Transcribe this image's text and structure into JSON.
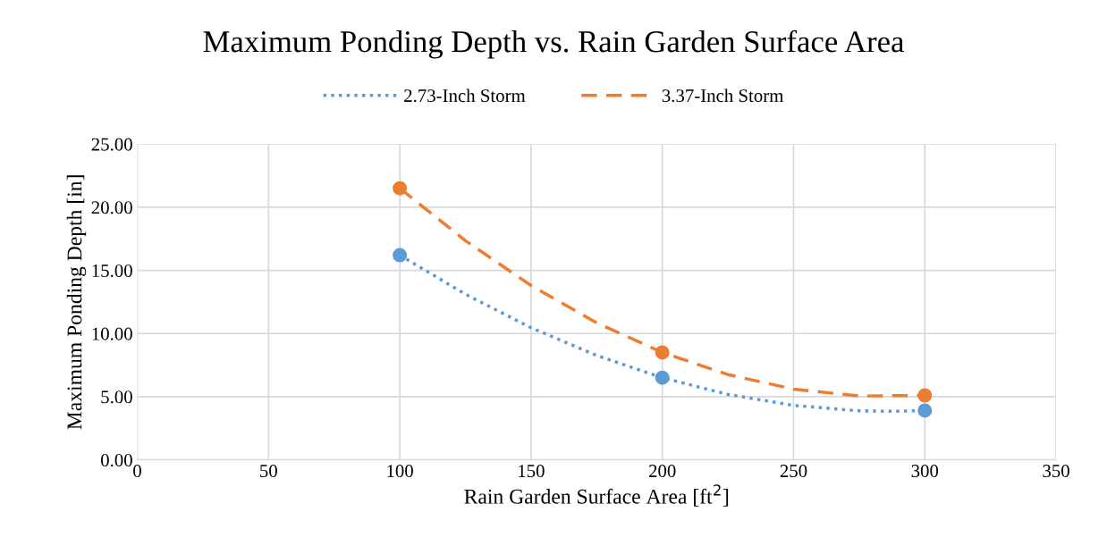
{
  "chart_data": {
    "type": "line",
    "title": "Maximum Ponding Depth vs. Rain Garden Surface Area",
    "xlabel": "Rain Garden Surface Area [ft$^{2}$]",
    "ylabel": "Maximum Ponding Depth [in]",
    "x": [
      100,
      200,
      300
    ],
    "series": [
      {
        "name": "2.73-Inch Storm",
        "color": "#5b9bd5",
        "line_style": "dotted",
        "marker": "none",
        "x": [
          100,
          125,
          150,
          175,
          200,
          225,
          250,
          275,
          287.5,
          300
        ],
        "values": [
          16.2,
          13.11,
          10.46,
          8.26,
          6.5,
          5.18,
          4.31,
          3.88,
          3.84,
          3.9
        ]
      },
      {
        "name": "3.37-Inch Storm",
        "color": "#ed7d31",
        "line_style": "dashed",
        "marker": "none",
        "x": [
          100,
          125,
          150,
          175,
          200,
          225,
          250,
          275,
          300
        ],
        "values": [
          21.5,
          17.35,
          13.8,
          10.85,
          8.5,
          6.75,
          5.6,
          5.05,
          5.1
        ]
      },
      {
        "type": "scatter",
        "color": "#5b9bd5",
        "marker": "circle",
        "values": [
          16.2,
          6.5,
          3.9
        ]
      },
      {
        "type": "scatter",
        "color": "#ed7d31",
        "marker": "circle",
        "values": [
          21.5,
          8.5,
          5.1
        ]
      }
    ],
    "xlim": [
      0,
      350
    ],
    "xticks": [
      0,
      50,
      100,
      150,
      200,
      250,
      300,
      350
    ],
    "ylim": [
      0,
      25
    ],
    "yticks": [
      {
        "value": 0,
        "label": "0.00"
      },
      {
        "value": 5,
        "label": "5.00"
      },
      {
        "value": 10,
        "label": "10.00"
      },
      {
        "value": 15,
        "label": "15.00"
      },
      {
        "value": 20,
        "label": "20.00"
      },
      {
        "value": 25,
        "label": "25.00"
      }
    ],
    "grid": true,
    "legend": "top"
  }
}
